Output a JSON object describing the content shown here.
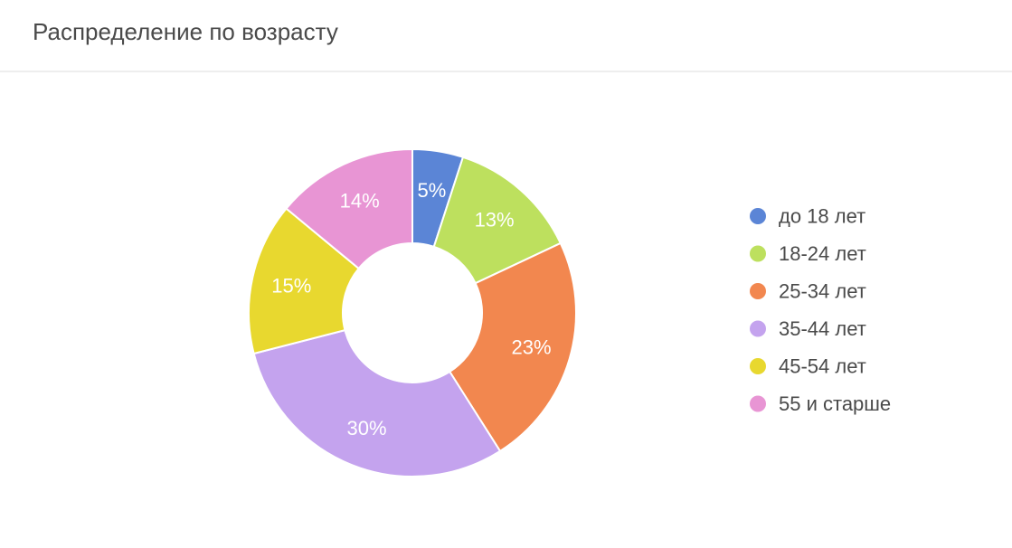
{
  "header": {
    "title": "Распределение по возрасту"
  },
  "chart_data": {
    "type": "pie",
    "variant": "donut",
    "title": "Распределение по возрасту",
    "legend_position": "right",
    "categories": [
      "до 18 лет",
      "18-24 лет",
      "25-34 лет",
      "35-44 лет",
      "45-54 лет",
      "55 и старше"
    ],
    "values": [
      5,
      13,
      23,
      30,
      15,
      14
    ],
    "labels": [
      "5%",
      "13%",
      "23%",
      "30%",
      "15%",
      "14%"
    ],
    "colors": [
      "#5b85d6",
      "#bde05e",
      "#f2874f",
      "#c4a3ee",
      "#e8d82f",
      "#e895d4"
    ],
    "value_unit": "%"
  }
}
